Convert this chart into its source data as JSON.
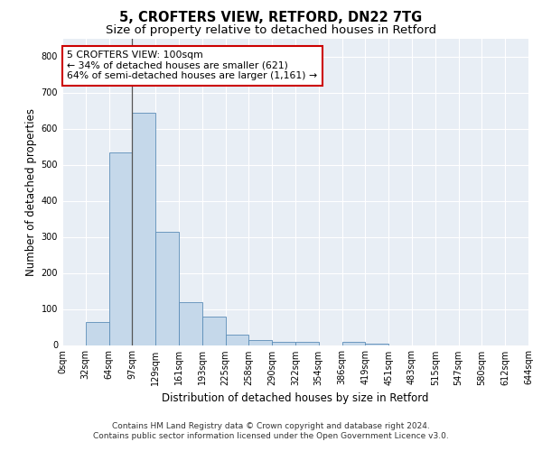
{
  "title": "5, CROFTERS VIEW, RETFORD, DN22 7TG",
  "subtitle": "Size of property relative to detached houses in Retford",
  "xlabel": "Distribution of detached houses by size in Retford",
  "ylabel": "Number of detached properties",
  "footer_line1": "Contains HM Land Registry data © Crown copyright and database right 2024.",
  "footer_line2": "Contains public sector information licensed under the Open Government Licence v3.0.",
  "annotation_line1": "5 CROFTERS VIEW: 100sqm",
  "annotation_line2": "← 34% of detached houses are smaller (621)",
  "annotation_line3": "64% of semi-detached houses are larger (1,161) →",
  "bar_values": [
    0,
    65,
    535,
    645,
    315,
    120,
    80,
    30,
    15,
    10,
    8,
    0,
    8,
    5,
    0,
    0,
    0,
    0,
    0,
    0
  ],
  "bin_labels": [
    "0sqm",
    "32sqm",
    "64sqm",
    "97sqm",
    "129sqm",
    "161sqm",
    "193sqm",
    "225sqm",
    "258sqm",
    "290sqm",
    "322sqm",
    "354sqm",
    "386sqm",
    "419sqm",
    "451sqm",
    "483sqm",
    "515sqm",
    "547sqm",
    "580sqm",
    "612sqm",
    "644sqm"
  ],
  "bar_color": "#c5d8ea",
  "bar_edge_color": "#5b8db8",
  "ylim": [
    0,
    850
  ],
  "yticks": [
    0,
    100,
    200,
    300,
    400,
    500,
    600,
    700,
    800
  ],
  "bg_color": "#ffffff",
  "plot_bg_color": "#e8eef5",
  "annotation_box_color": "#ffffff",
  "annotation_box_edge": "#cc0000",
  "vline_color": "#555555",
  "title_fontsize": 10.5,
  "subtitle_fontsize": 9.5,
  "axis_label_fontsize": 8.5,
  "tick_fontsize": 7,
  "footer_fontsize": 6.5,
  "annotation_fontsize": 7.8
}
